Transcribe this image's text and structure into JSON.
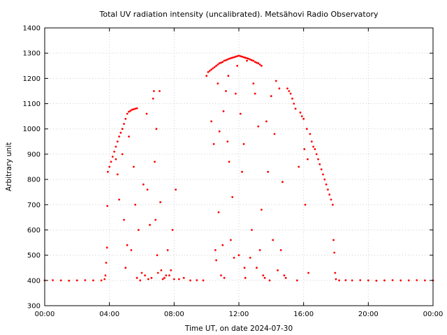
{
  "chart_data": {
    "type": "scatter",
    "title": "Total UV radiation intensity (uncalibrated). Metsähovi Radio Observatory",
    "xlabel": "Time UT, on date 2024-07-30",
    "ylabel": "Arbitrary unit",
    "xlim": [
      0,
      24
    ],
    "ylim": [
      300,
      1400
    ],
    "x_ticks": [
      {
        "value": 0,
        "label": "00:00"
      },
      {
        "value": 4,
        "label": "04:00"
      },
      {
        "value": 8,
        "label": "08:00"
      },
      {
        "value": 12,
        "label": "12:00"
      },
      {
        "value": 16,
        "label": "16:00"
      },
      {
        "value": 20,
        "label": "20:00"
      },
      {
        "value": 24,
        "label": "00:00"
      }
    ],
    "y_ticks": [
      {
        "value": 300,
        "label": "300"
      },
      {
        "value": 400,
        "label": "400"
      },
      {
        "value": 500,
        "label": "500"
      },
      {
        "value": 600,
        "label": "600"
      },
      {
        "value": 700,
        "label": "700"
      },
      {
        "value": 800,
        "label": "800"
      },
      {
        "value": 900,
        "label": "900"
      },
      {
        "value": 1000,
        "label": "1000"
      },
      {
        "value": 1100,
        "label": "1100"
      },
      {
        "value": 1200,
        "label": "1200"
      },
      {
        "value": 1300,
        "label": "1300"
      },
      {
        "value": 1400,
        "label": "1400"
      }
    ],
    "grid": true,
    "marker_color": "#ff0000",
    "series": [
      {
        "points": [
          [
            0.0,
            400
          ],
          [
            0.5,
            401
          ],
          [
            1.0,
            400
          ],
          [
            1.5,
            399
          ],
          [
            2.0,
            400
          ],
          [
            2.5,
            401
          ],
          [
            3.0,
            400
          ],
          [
            3.5,
            400
          ],
          [
            3.7,
            405
          ],
          [
            3.75,
            420
          ],
          [
            3.8,
            470
          ],
          [
            3.85,
            530
          ],
          [
            3.87,
            695
          ],
          [
            3.9,
            830
          ],
          [
            4.0,
            850
          ],
          [
            4.1,
            870
          ],
          [
            4.2,
            890
          ],
          [
            4.3,
            910
          ],
          [
            4.4,
            930
          ],
          [
            4.5,
            950
          ],
          [
            4.6,
            970
          ],
          [
            4.7,
            985
          ],
          [
            4.8,
            1000
          ],
          [
            4.9,
            1020
          ],
          [
            5.0,
            1040
          ],
          [
            5.1,
            1060
          ],
          [
            5.2,
            1068
          ],
          [
            5.3,
            1072
          ],
          [
            5.4,
            1076
          ],
          [
            5.5,
            1078
          ],
          [
            5.6,
            1080
          ],
          [
            5.7,
            1082
          ],
          [
            4.4,
            880
          ],
          [
            4.5,
            820
          ],
          [
            4.6,
            720
          ],
          [
            4.8,
            900
          ],
          [
            4.9,
            640
          ],
          [
            5.0,
            450
          ],
          [
            5.1,
            540
          ],
          [
            5.2,
            970
          ],
          [
            5.35,
            520
          ],
          [
            5.5,
            850
          ],
          [
            5.6,
            700
          ],
          [
            5.7,
            410
          ],
          [
            5.8,
            600
          ],
          [
            5.9,
            400
          ],
          [
            6.0,
            430
          ],
          [
            6.1,
            780
          ],
          [
            6.2,
            420
          ],
          [
            6.3,
            1060
          ],
          [
            6.35,
            760
          ],
          [
            6.4,
            405
          ],
          [
            6.5,
            620
          ],
          [
            6.6,
            410
          ],
          [
            6.7,
            1120
          ],
          [
            6.75,
            1150
          ],
          [
            6.8,
            870
          ],
          [
            6.85,
            640
          ],
          [
            6.9,
            1000
          ],
          [
            6.95,
            500
          ],
          [
            7.0,
            430
          ],
          [
            7.1,
            1150
          ],
          [
            7.15,
            710
          ],
          [
            7.2,
            440
          ],
          [
            7.3,
            405
          ],
          [
            7.4,
            410
          ],
          [
            7.5,
            420
          ],
          [
            7.6,
            520
          ],
          [
            7.7,
            420
          ],
          [
            7.8,
            440
          ],
          [
            7.9,
            600
          ],
          [
            8.0,
            405
          ],
          [
            8.1,
            760
          ],
          [
            8.3,
            405
          ],
          [
            8.6,
            410
          ],
          [
            9.0,
            400
          ],
          [
            9.4,
            401
          ],
          [
            9.8,
            400
          ],
          [
            10.0,
            1210
          ],
          [
            10.1,
            1225
          ],
          [
            10.2,
            1230
          ],
          [
            10.3,
            1235
          ],
          [
            10.4,
            1240
          ],
          [
            10.5,
            1245
          ],
          [
            10.6,
            1250
          ],
          [
            10.7,
            1255
          ],
          [
            10.8,
            1260
          ],
          [
            10.9,
            1262
          ],
          [
            11.0,
            1265
          ],
          [
            11.1,
            1270
          ],
          [
            11.2,
            1272
          ],
          [
            11.3,
            1275
          ],
          [
            11.4,
            1278
          ],
          [
            11.5,
            1280
          ],
          [
            11.6,
            1282
          ],
          [
            11.7,
            1284
          ],
          [
            11.8,
            1286
          ],
          [
            11.9,
            1288
          ],
          [
            12.0,
            1290
          ],
          [
            12.1,
            1288
          ],
          [
            12.2,
            1286
          ],
          [
            12.3,
            1284
          ],
          [
            12.4,
            1282
          ],
          [
            12.5,
            1280
          ],
          [
            12.6,
            1278
          ],
          [
            12.7,
            1275
          ],
          [
            12.8,
            1272
          ],
          [
            12.9,
            1270
          ],
          [
            13.0,
            1265
          ],
          [
            13.1,
            1262
          ],
          [
            13.2,
            1260
          ],
          [
            13.3,
            1255
          ],
          [
            13.4,
            1250
          ],
          [
            10.3,
            1030
          ],
          [
            10.45,
            940
          ],
          [
            10.55,
            520
          ],
          [
            10.6,
            480
          ],
          [
            10.7,
            1180
          ],
          [
            10.75,
            670
          ],
          [
            10.8,
            990
          ],
          [
            10.9,
            420
          ],
          [
            11.0,
            540
          ],
          [
            11.05,
            1070
          ],
          [
            11.1,
            410
          ],
          [
            11.2,
            1150
          ],
          [
            11.3,
            950
          ],
          [
            11.35,
            1210
          ],
          [
            11.4,
            870
          ],
          [
            11.5,
            560
          ],
          [
            11.6,
            730
          ],
          [
            11.7,
            490
          ],
          [
            11.8,
            1140
          ],
          [
            11.9,
            1250
          ],
          [
            12.0,
            500
          ],
          [
            12.1,
            1060
          ],
          [
            12.2,
            830
          ],
          [
            12.3,
            940
          ],
          [
            12.35,
            450
          ],
          [
            12.4,
            410
          ],
          [
            12.5,
            1270
          ],
          [
            12.7,
            490
          ],
          [
            12.8,
            600
          ],
          [
            12.9,
            1180
          ],
          [
            13.0,
            1140
          ],
          [
            13.1,
            450
          ],
          [
            13.2,
            1010
          ],
          [
            13.3,
            520
          ],
          [
            13.4,
            680
          ],
          [
            13.5,
            420
          ],
          [
            13.6,
            410
          ],
          [
            13.7,
            1030
          ],
          [
            13.8,
            830
          ],
          [
            13.9,
            400
          ],
          [
            14.0,
            1130
          ],
          [
            14.1,
            560
          ],
          [
            14.2,
            980
          ],
          [
            14.3,
            1190
          ],
          [
            14.4,
            440
          ],
          [
            14.5,
            1160
          ],
          [
            14.6,
            520
          ],
          [
            14.7,
            790
          ],
          [
            14.8,
            420
          ],
          [
            14.9,
            410
          ],
          [
            15.0,
            1160
          ],
          [
            15.1,
            1150
          ],
          [
            15.2,
            1140
          ],
          [
            15.3,
            1120
          ],
          [
            15.4,
            1100
          ],
          [
            15.5,
            1080
          ],
          [
            15.6,
            400
          ],
          [
            15.7,
            850
          ],
          [
            15.8,
            1065
          ],
          [
            15.9,
            1050
          ],
          [
            16.0,
            1040
          ],
          [
            16.05,
            920
          ],
          [
            16.1,
            700
          ],
          [
            16.2,
            1000
          ],
          [
            16.25,
            880
          ],
          [
            16.3,
            430
          ],
          [
            16.4,
            980
          ],
          [
            16.5,
            950
          ],
          [
            16.6,
            930
          ],
          [
            16.7,
            920
          ],
          [
            16.8,
            900
          ],
          [
            16.9,
            880
          ],
          [
            17.0,
            860
          ],
          [
            17.1,
            840
          ],
          [
            17.2,
            820
          ],
          [
            17.3,
            800
          ],
          [
            17.4,
            780
          ],
          [
            17.5,
            760
          ],
          [
            17.6,
            740
          ],
          [
            17.7,
            720
          ],
          [
            17.8,
            700
          ],
          [
            17.85,
            560
          ],
          [
            17.9,
            510
          ],
          [
            17.95,
            430
          ],
          [
            18.0,
            405
          ],
          [
            18.2,
            400
          ],
          [
            18.6,
            401
          ],
          [
            19.0,
            400
          ],
          [
            19.5,
            401
          ],
          [
            20.0,
            400
          ],
          [
            20.5,
            399
          ],
          [
            21.0,
            400
          ],
          [
            21.5,
            401
          ],
          [
            22.0,
            400
          ],
          [
            22.5,
            400
          ],
          [
            23.0,
            401
          ],
          [
            23.5,
            400
          ],
          [
            24.0,
            400
          ]
        ]
      }
    ]
  }
}
